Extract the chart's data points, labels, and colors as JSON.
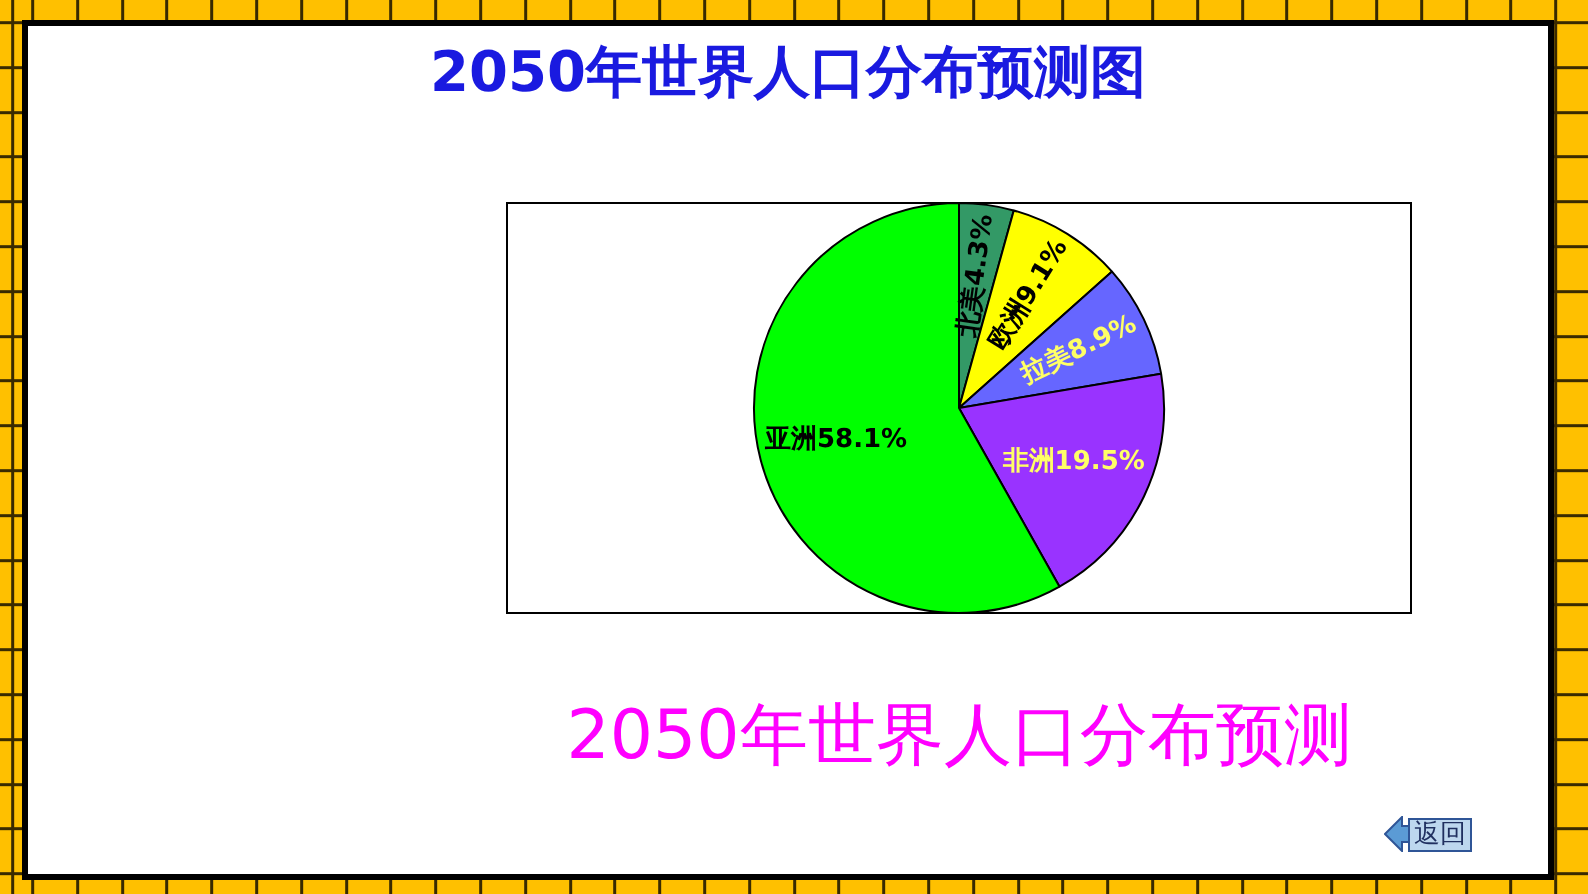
{
  "chart_data": {
    "type": "pie",
    "title": "2050年世界人口分布预测图",
    "categories": [
      "北美",
      "欧洲",
      "拉美",
      "非洲",
      "亚洲"
    ],
    "values": [
      4.3,
      9.1,
      8.9,
      19.5,
      58.1
    ],
    "colors": [
      "#339966",
      "#ffff00",
      "#6666ff",
      "#9933ff",
      "#00ff00"
    ],
    "value_labels": [
      "4.3%",
      "9.1%",
      "8.9%",
      "19.5%",
      "58.1%"
    ],
    "annotations": [
      "2050年世界人口分布预测",
      "返回"
    ]
  }
}
